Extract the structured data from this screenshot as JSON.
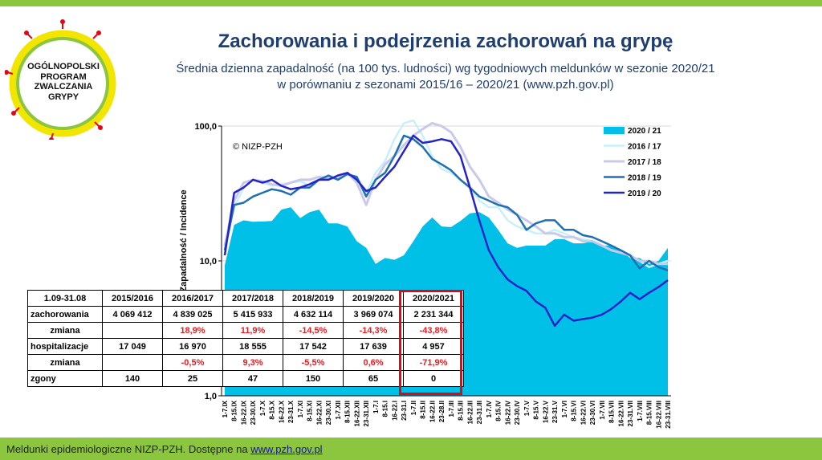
{
  "header": {
    "title": "Zachorowania i podejrzenia zachorowań na grypę",
    "subtitle_line1": "Średnia dzienna zapadalność (na 100 tys. ludności) wg tygodniowych meldunków w sezonie 2020/21",
    "subtitle_line2": "w porównaniu z sezonami 2015/16 – 2020/21 (www.pzh.gov.pl)"
  },
  "logo": {
    "line1": "OGÓLNOPOLSKI",
    "line2": "PROGRAM",
    "line3": "ZWALCZANIA",
    "line4": "GRYPY"
  },
  "footer": {
    "text": "Meldunki epidemiologiczne NIZP-PZH. Dostępne na ",
    "link": "www.pzh.gov.pl"
  },
  "colors": {
    "s2021": "#00c0e8",
    "s1617": "#c8f0fb",
    "s1718": "#c9c9ea",
    "s1819": "#1e6fb3",
    "s1920": "#2323c8",
    "highlight": "#e30613"
  },
  "chart_data": {
    "type": "area",
    "yscale": "log",
    "ylim": [
      1,
      100
    ],
    "yticks": [
      "100,0",
      "10,0",
      "1,0"
    ],
    "ylabel": "Zapadalność / Incidence",
    "copyright": "© NIZP-PZH",
    "x": [
      "1-7.IX",
      "8-15.IX",
      "16-22.IX",
      "23-30.IX",
      "1-7.X",
      "8-15.X",
      "16-22.X",
      "23-31.X",
      "1-7.XI",
      "8-15.XI",
      "16-22.XI",
      "23-30.XI",
      "1-7.XII",
      "8-15.XII",
      "16-22.XII",
      "23-31.XII",
      "1-7.I",
      "8-15.I",
      "16-22.I",
      "23-31.I",
      "1-7.II",
      "8-15.II",
      "16-22.II",
      "23-28.II",
      "1-7.III",
      "8-15.III",
      "16-22.III",
      "23-31.III",
      "1-7.IV",
      "8-15.IV",
      "16-22.IV",
      "23-30.IV",
      "1-7.V",
      "8-15.V",
      "16-22.V",
      "23-31.V",
      "1-7.VI",
      "8-15.VI",
      "16-22.VI",
      "23-30.VI",
      "1-7.VII",
      "8-15.VII",
      "16-22.VII",
      "23-31.VII",
      "1-7.VIII",
      "8-15.VIII",
      "16-22.VIII",
      "23-31.VIII"
    ],
    "series": [
      {
        "name": "2020 / 21",
        "kind": "area",
        "values": [
          9.3,
          18.5,
          20,
          19.5,
          19.6,
          19.8,
          24,
          25,
          20.8,
          23,
          24,
          19,
          19,
          18,
          14,
          12.5,
          9.5,
          10.5,
          10.2,
          11,
          14,
          18,
          21,
          18,
          17.8,
          19.8,
          22.5,
          23,
          21,
          17,
          13.5,
          12.5,
          13,
          13,
          13,
          14.5,
          14.5,
          13.5,
          13.5,
          14,
          13,
          13,
          12,
          10.5,
          10.5,
          9.5,
          10,
          12.5
        ]
      },
      {
        "name": "2016 / 17",
        "kind": "line",
        "values": [
          12,
          25,
          35,
          40,
          38,
          36,
          37,
          38,
          39,
          36,
          40,
          42,
          40,
          44,
          42,
          32,
          45,
          55,
          80,
          105,
          110,
          85,
          60,
          48,
          45,
          40,
          35,
          28,
          25,
          25,
          20,
          18,
          17,
          16,
          16,
          17,
          16,
          15,
          14.5,
          14,
          13,
          12,
          11.5,
          11,
          10,
          9,
          9.5,
          10
        ]
      },
      {
        "name": "2017 / 18",
        "kind": "line",
        "values": [
          13,
          28,
          38,
          40,
          39,
          37,
          36,
          38,
          40,
          40,
          42,
          41,
          41,
          45,
          38,
          26,
          40,
          52,
          60,
          72,
          85,
          95,
          105,
          100,
          90,
          70,
          50,
          40,
          30,
          27,
          24,
          22,
          20,
          18,
          16,
          16,
          15,
          15,
          14,
          14,
          13,
          12,
          11.5,
          11,
          10,
          10,
          9.5,
          9.5
        ]
      },
      {
        "name": "2018 / 19",
        "kind": "line",
        "values": [
          12,
          26,
          27,
          30,
          32,
          34,
          33,
          31,
          35,
          35,
          40,
          43,
          40,
          44,
          42,
          30,
          40,
          45,
          60,
          85,
          80,
          70,
          57,
          52,
          47,
          40,
          35,
          30,
          28,
          26,
          25,
          22,
          17,
          19,
          20,
          20,
          17,
          17,
          15.5,
          15,
          14,
          13,
          12,
          11,
          8.8,
          10,
          9,
          8.5
        ]
      },
      {
        "name": "2019 / 20",
        "kind": "line",
        "values": [
          11,
          32,
          35,
          40,
          38,
          40,
          36,
          34,
          35,
          37,
          40,
          40,
          43,
          45,
          40,
          33,
          35,
          42,
          50,
          65,
          85,
          75,
          77,
          80,
          77,
          60,
          35,
          20,
          12,
          9,
          7.3,
          6.5,
          6,
          5,
          4.5,
          3.3,
          4,
          3.6,
          3.7,
          3.8,
          4,
          4.4,
          5,
          5.8,
          5.2,
          5.8,
          6.4,
          7.2
        ]
      }
    ]
  },
  "table": {
    "headers": [
      "1.09-31.08",
      "2015/2016",
      "2016/2017",
      "2017/2018",
      "2018/2019",
      "2019/2020",
      "2020/2021"
    ],
    "rows": [
      {
        "label": "zachorowania",
        "values": [
          "4 069 412",
          "4 839 025",
          "5 415 933",
          "4 632 114",
          "3 969 074",
          "2 231 344"
        ],
        "red": false
      },
      {
        "label": "zmiana",
        "values": [
          "",
          "18,9%",
          "11,9%",
          "-14,5%",
          "-14,3%",
          "-43,8%"
        ],
        "red": true
      },
      {
        "label": "hospitalizacje",
        "values": [
          "17 049",
          "16 970",
          "18 555",
          "17 542",
          "17 639",
          "4 957"
        ],
        "red": false
      },
      {
        "label": "zmiana",
        "values": [
          "",
          "-0,5%",
          "9,3%",
          "-5,5%",
          "0,6%",
          "-71,9%"
        ],
        "red": true
      },
      {
        "label": "zgony",
        "values": [
          "140",
          "25",
          "47",
          "150",
          "65",
          "0"
        ],
        "red": false
      }
    ]
  }
}
